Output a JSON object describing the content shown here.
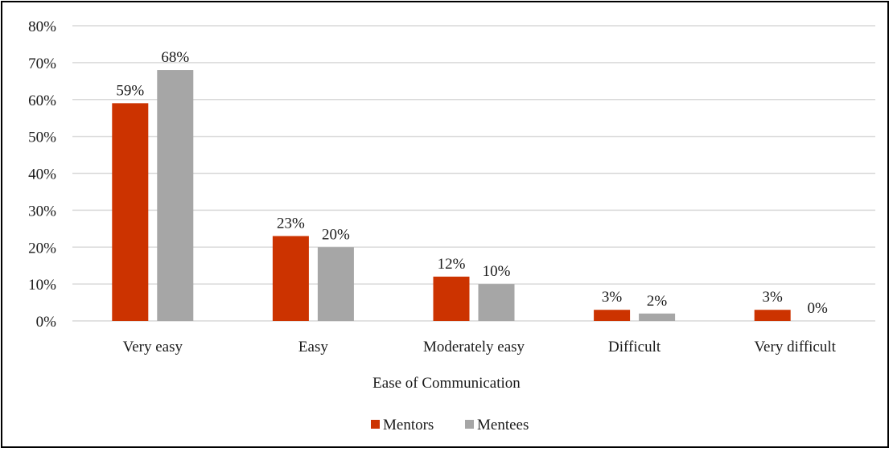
{
  "chart_data": {
    "type": "bar",
    "categories": [
      "Very easy",
      "Easy",
      "Moderately easy",
      "Difficult",
      "Very difficult"
    ],
    "series": [
      {
        "name": "Mentors",
        "values": [
          59,
          23,
          12,
          3,
          3
        ],
        "labels": [
          "59%",
          "23%",
          "12%",
          "3%",
          "3%"
        ],
        "color": "#cc3300"
      },
      {
        "name": "Mentees",
        "values": [
          68,
          20,
          10,
          2,
          0
        ],
        "labels": [
          "68%",
          "20%",
          "10%",
          "2%",
          "0%"
        ],
        "color": "#a6a6a6"
      }
    ],
    "xlabel": "Ease of Communication",
    "ylabel": "",
    "ylim": [
      0,
      80
    ],
    "y_ticks": [
      0,
      10,
      20,
      30,
      40,
      50,
      60,
      70,
      80
    ],
    "y_tick_labels": [
      "0%",
      "10%",
      "20%",
      "30%",
      "40%",
      "50%",
      "60%",
      "70%",
      "80%"
    ],
    "grid": true,
    "grid_color": "#d9d9d9",
    "legend_position": "bottom"
  }
}
